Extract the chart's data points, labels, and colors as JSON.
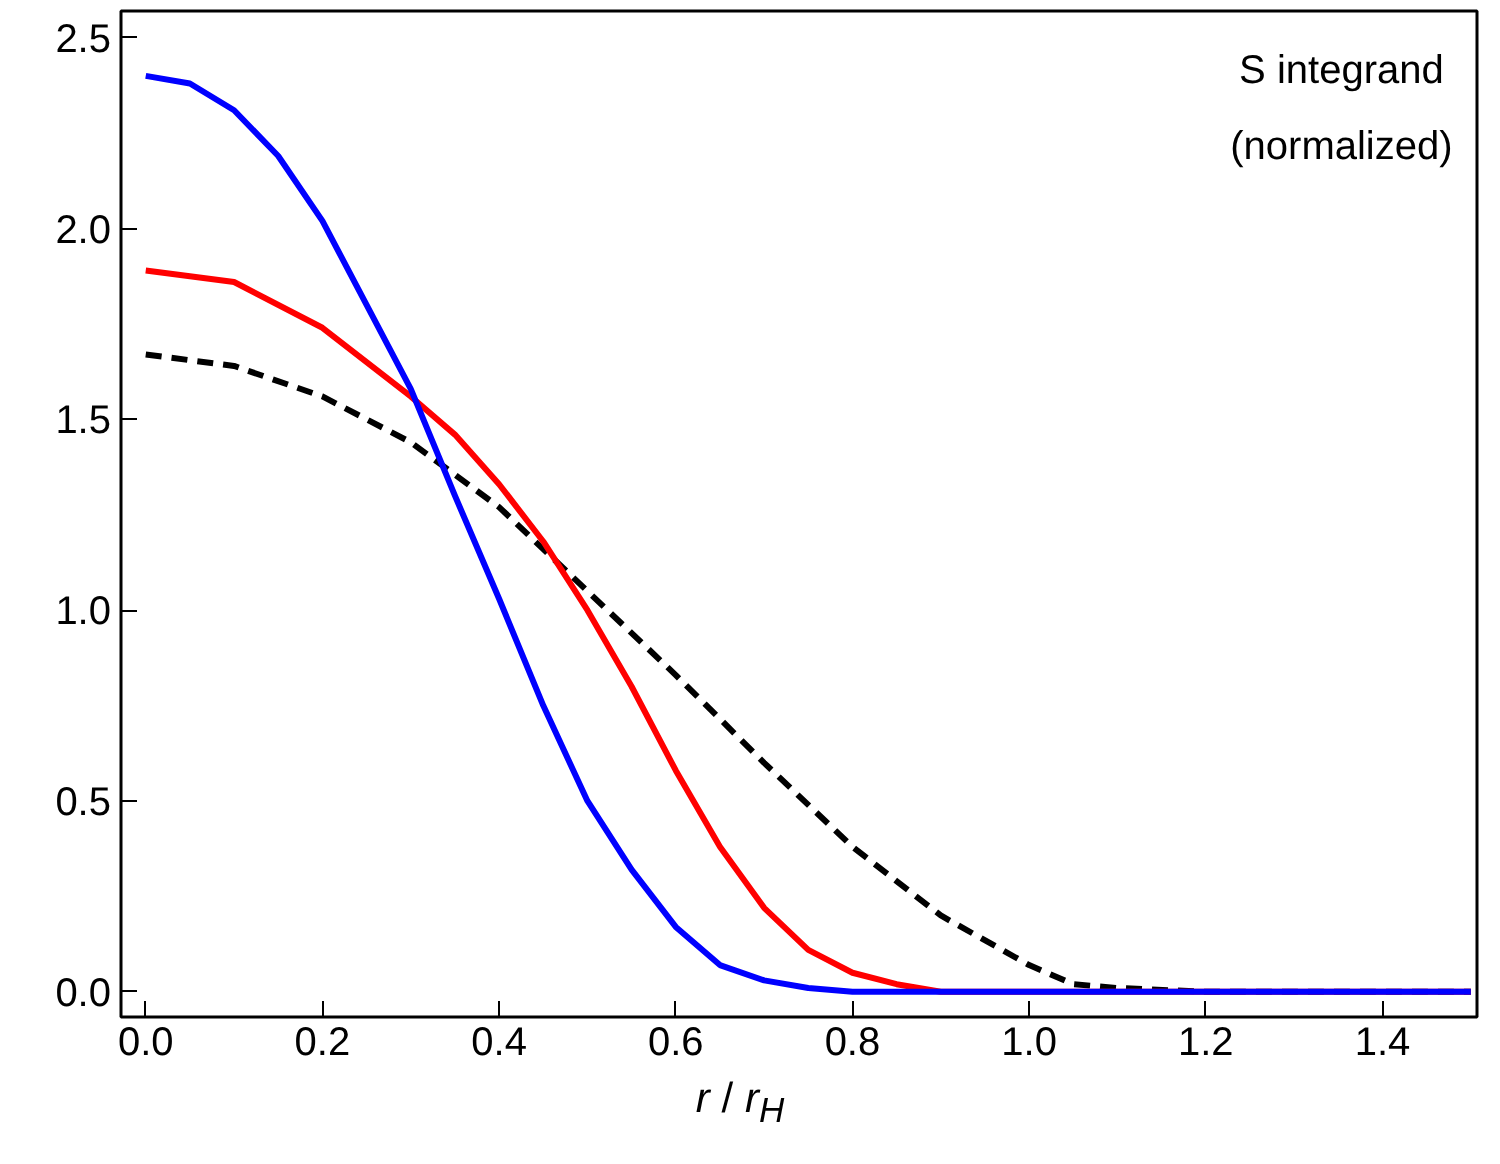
{
  "chart_data": {
    "type": "line",
    "xlabel": "r / r$_{H}$",
    "annotations": [
      "S integrand\n(normalized)"
    ],
    "xlim": [
      -0.028,
      1.507
    ],
    "ylim": [
      -0.066,
      2.57
    ],
    "xticks": [
      {
        "value": 0,
        "label": "0.0"
      },
      0.2,
      0.4,
      0.6,
      0.8,
      {
        "value": 1,
        "label": "1.0"
      },
      1.2,
      1.4
    ],
    "yticks": [
      {
        "value": 0,
        "label": "0.0"
      },
      0.5,
      {
        "value": 1,
        "label": "1.0"
      },
      1.5,
      {
        "value": 2,
        "label": "2.0"
      },
      2.5
    ],
    "grid": false,
    "series": [
      {
        "color": "#000000",
        "line_style": "dashed",
        "x": [
          0,
          0.1,
          0.2,
          0.3,
          0.4,
          0.5,
          0.6,
          0.7,
          0.8,
          0.9,
          1.0,
          1.05,
          1.1,
          1.2,
          1.5
        ],
        "values": [
          1.67,
          1.64,
          1.56,
          1.44,
          1.27,
          1.05,
          0.83,
          0.6,
          0.38,
          0.2,
          0.07,
          0.02,
          0.01,
          0.0,
          0.0
        ]
      },
      {
        "color": "#ff0000",
        "line_style": "solid",
        "x": [
          0,
          0.1,
          0.2,
          0.3,
          0.35,
          0.4,
          0.45,
          0.5,
          0.55,
          0.6,
          0.65,
          0.7,
          0.75,
          0.8,
          0.85,
          0.9,
          1.5
        ],
        "values": [
          1.89,
          1.86,
          1.74,
          1.56,
          1.46,
          1.33,
          1.18,
          1.0,
          0.8,
          0.58,
          0.38,
          0.22,
          0.11,
          0.05,
          0.02,
          0.0,
          0.0
        ]
      },
      {
        "color": "#0000ff",
        "line_style": "solid",
        "x": [
          0,
          0.05,
          0.1,
          0.15,
          0.2,
          0.25,
          0.3,
          0.35,
          0.4,
          0.45,
          0.5,
          0.55,
          0.6,
          0.65,
          0.7,
          0.75,
          0.8,
          1.5
        ],
        "values": [
          2.4,
          2.38,
          2.31,
          2.19,
          2.02,
          1.8,
          1.58,
          1.3,
          1.03,
          0.75,
          0.5,
          0.32,
          0.17,
          0.07,
          0.03,
          0.01,
          0.0,
          0.0
        ]
      }
    ]
  }
}
